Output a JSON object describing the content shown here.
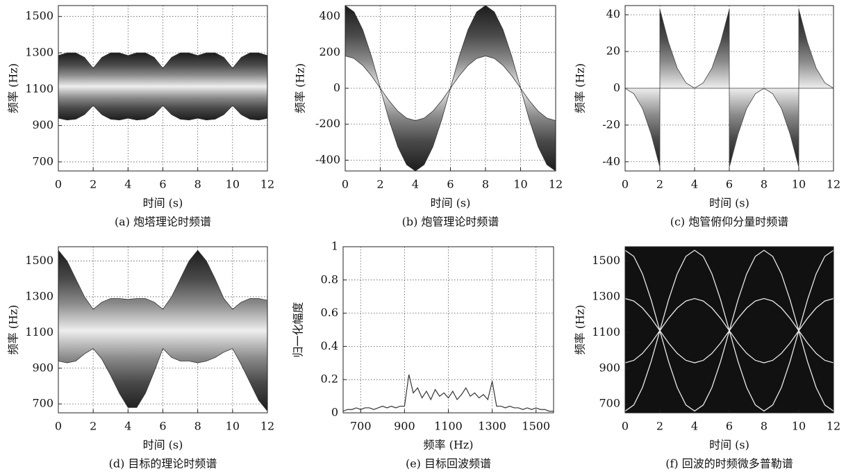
{
  "chart_data": [
    {
      "type": "spectrogram",
      "caption": "(a) 炮塔理论时频谱",
      "xlabel": "时间 (s)",
      "ylabel": "频率 (Hz)",
      "x": [
        0,
        0.5,
        1,
        1.5,
        2,
        2.5,
        3,
        3.5,
        4,
        4.5,
        5,
        5.5,
        6,
        6.5,
        7,
        7.5,
        8,
        8.5,
        9,
        9.5,
        10,
        10.5,
        11,
        11.5,
        12
      ],
      "upper": [
        1285,
        1300,
        1300,
        1275,
        1215,
        1275,
        1300,
        1300,
        1285,
        1300,
        1300,
        1275,
        1215,
        1275,
        1300,
        1300,
        1285,
        1300,
        1300,
        1275,
        1215,
        1275,
        1300,
        1300,
        1285
      ],
      "lower": [
        940,
        930,
        935,
        960,
        1010,
        960,
        935,
        930,
        940,
        930,
        935,
        960,
        1010,
        960,
        935,
        930,
        940,
        930,
        935,
        960,
        1010,
        960,
        935,
        930,
        940
      ],
      "xlim": [
        0,
        12
      ],
      "xticks": [
        0,
        2,
        4,
        6,
        8,
        10,
        12
      ],
      "ylim": [
        650,
        1560
      ],
      "yticks": [
        700,
        900,
        1100,
        1300,
        1500
      ],
      "grid": true
    },
    {
      "type": "spectrogram",
      "caption": "(b) 炮管理论时频谱",
      "xlabel": "时间 (s)",
      "ylabel": "频率 (Hz)",
      "x": [
        0,
        0.5,
        1,
        1.5,
        2,
        2.5,
        3,
        3.5,
        4,
        4.5,
        5,
        5.5,
        6,
        6.5,
        7,
        7.5,
        8,
        8.5,
        9,
        9.5,
        10,
        10.5,
        11,
        11.5,
        12
      ],
      "upper": [
        460,
        425,
        325,
        176,
        0,
        -69,
        -127,
        -166,
        -180,
        -166,
        -127,
        -69,
        0,
        176,
        325,
        425,
        460,
        425,
        325,
        176,
        0,
        -69,
        -127,
        -166,
        -180
      ],
      "lower": [
        180,
        166,
        127,
        69,
        0,
        -176,
        -325,
        -425,
        -460,
        -425,
        -325,
        -176,
        0,
        69,
        127,
        166,
        180,
        166,
        127,
        69,
        0,
        -176,
        -325,
        -425,
        -460
      ],
      "xlim": [
        0,
        12
      ],
      "xticks": [
        0,
        2,
        4,
        6,
        8,
        10,
        12
      ],
      "ylim": [
        -460,
        460
      ],
      "yticks": [
        -400,
        -200,
        0,
        200,
        400
      ],
      "grid": true
    },
    {
      "type": "pitch",
      "caption": "(c) 炮管俯仰分量时频谱",
      "xlabel": "时间 (s)",
      "ylabel": "频率 (Hz)",
      "x": [
        0,
        0.5,
        1,
        1.5,
        2,
        2,
        2.5,
        3,
        3.5,
        4,
        4.5,
        5,
        5.5,
        6,
        6,
        6.5,
        7,
        7.5,
        8,
        8.5,
        9,
        9.5,
        10,
        10,
        10.5,
        11,
        11.5,
        12
      ],
      "values": [
        0,
        -3,
        -11,
        -25,
        -43,
        43,
        25,
        11,
        3,
        0,
        3,
        11,
        25,
        43,
        -43,
        -25,
        -11,
        -3,
        0,
        -3,
        -11,
        -25,
        -43,
        43,
        25,
        11,
        3,
        0
      ],
      "xlim": [
        0,
        12
      ],
      "xticks": [
        0,
        2,
        4,
        6,
        8,
        10,
        12
      ],
      "ylim": [
        -45,
        45
      ],
      "yticks": [
        -40,
        -20,
        0,
        20,
        40
      ],
      "grid": true
    },
    {
      "type": "spectrogram",
      "caption": "(d) 目标的理论时频谱",
      "xlabel": "时间 (s)",
      "ylabel": "频率 (Hz)",
      "x": [
        0,
        0.5,
        1,
        1.5,
        2,
        2.5,
        3,
        3.5,
        4,
        4.5,
        5,
        5.5,
        6,
        6.5,
        7,
        7.5,
        8,
        8.5,
        9,
        9.5,
        10,
        10.5,
        11,
        11.5,
        12
      ],
      "upper": [
        1560,
        1500,
        1400,
        1300,
        1230,
        1270,
        1290,
        1290,
        1285,
        1290,
        1290,
        1270,
        1230,
        1300,
        1400,
        1500,
        1560,
        1500,
        1400,
        1290,
        1230,
        1270,
        1290,
        1290,
        1280
      ],
      "lower": [
        940,
        930,
        940,
        980,
        1010,
        950,
        860,
        760,
        680,
        680,
        760,
        880,
        1010,
        960,
        940,
        940,
        930,
        940,
        960,
        990,
        1010,
        920,
        820,
        720,
        660
      ],
      "xlim": [
        0,
        12
      ],
      "xticks": [
        0,
        2,
        4,
        6,
        8,
        10,
        12
      ],
      "ylim": [
        650,
        1580
      ],
      "yticks": [
        700,
        900,
        1100,
        1300,
        1500
      ],
      "grid": true
    },
    {
      "type": "line",
      "caption": "(e) 目标回波频谱",
      "xlabel": "频率 (Hz)",
      "ylabel": "归一化幅度",
      "color": "#333333",
      "x": [
        620,
        640,
        660,
        680,
        700,
        720,
        740,
        760,
        780,
        800,
        820,
        840,
        860,
        880,
        900,
        920,
        940,
        960,
        980,
        1000,
        1020,
        1040,
        1060,
        1080,
        1100,
        1120,
        1140,
        1160,
        1180,
        1200,
        1220,
        1240,
        1260,
        1280,
        1300,
        1320,
        1340,
        1360,
        1380,
        1400,
        1420,
        1440,
        1460,
        1480,
        1500,
        1520,
        1540,
        1560,
        1580
      ],
      "values": [
        0.01,
        0.02,
        0.02,
        0.03,
        0.02,
        0.03,
        0.03,
        0.02,
        0.03,
        0.04,
        0.03,
        0.04,
        0.03,
        0.04,
        0.04,
        0.23,
        0.12,
        0.15,
        0.09,
        0.13,
        0.08,
        0.14,
        0.1,
        0.12,
        0.09,
        0.13,
        0.08,
        0.11,
        0.15,
        0.1,
        0.12,
        0.09,
        0.11,
        0.08,
        0.19,
        0.04,
        0.04,
        0.03,
        0.04,
        0.03,
        0.03,
        0.02,
        0.03,
        0.02,
        0.03,
        0.02,
        0.02,
        0.01,
        0.01
      ],
      "xlim": [
        620,
        1580
      ],
      "xticks": [
        700,
        900,
        1100,
        1300,
        1500
      ],
      "ylim": [
        0,
        1
      ],
      "yticks": [
        0,
        0.2,
        0.4,
        0.6,
        0.8,
        1
      ],
      "grid": true
    },
    {
      "type": "micro-doppler",
      "caption": "(f) 回波的时频微多普勒谱",
      "xlabel": "时间 (s)",
      "ylabel": "频率 (Hz)",
      "background": "#111111",
      "color": "#e8e8e8",
      "x": [
        0,
        0.5,
        1,
        1.5,
        2,
        2.5,
        3,
        3.5,
        4,
        4.5,
        5,
        5.5,
        6,
        6.5,
        7,
        7.5,
        8,
        8.5,
        9,
        9.5,
        10,
        10.5,
        11,
        11.5,
        12
      ],
      "series": [
        {
          "values": [
            1560,
            1526,
            1428,
            1282,
            1110,
            938,
            792,
            694,
            660,
            694,
            792,
            938,
            1110,
            1282,
            1428,
            1526,
            1560,
            1526,
            1428,
            1282,
            1110,
            938,
            792,
            694,
            660
          ]
        },
        {
          "values": [
            1290,
            1276,
            1237,
            1179,
            1110,
            1041,
            983,
            944,
            930,
            944,
            983,
            1041,
            1110,
            1179,
            1237,
            1276,
            1290,
            1276,
            1237,
            1179,
            1110,
            1041,
            983,
            944,
            930
          ]
        },
        {
          "values": [
            930,
            944,
            983,
            1041,
            1110,
            1179,
            1237,
            1276,
            1290,
            1276,
            1237,
            1179,
            1110,
            1041,
            983,
            944,
            930,
            944,
            983,
            1041,
            1110,
            1179,
            1237,
            1276,
            1290
          ]
        },
        {
          "values": [
            660,
            694,
            792,
            938,
            1110,
            1282,
            1428,
            1526,
            1560,
            1526,
            1428,
            1282,
            1110,
            938,
            792,
            694,
            660,
            694,
            792,
            938,
            1110,
            1282,
            1428,
            1526,
            1560
          ]
        }
      ],
      "xlim": [
        0,
        12
      ],
      "xticks": [
        0,
        2,
        4,
        6,
        8,
        10,
        12
      ],
      "ylim": [
        650,
        1580
      ],
      "yticks": [
        700,
        900,
        1100,
        1300,
        1500
      ],
      "grid": false
    }
  ]
}
